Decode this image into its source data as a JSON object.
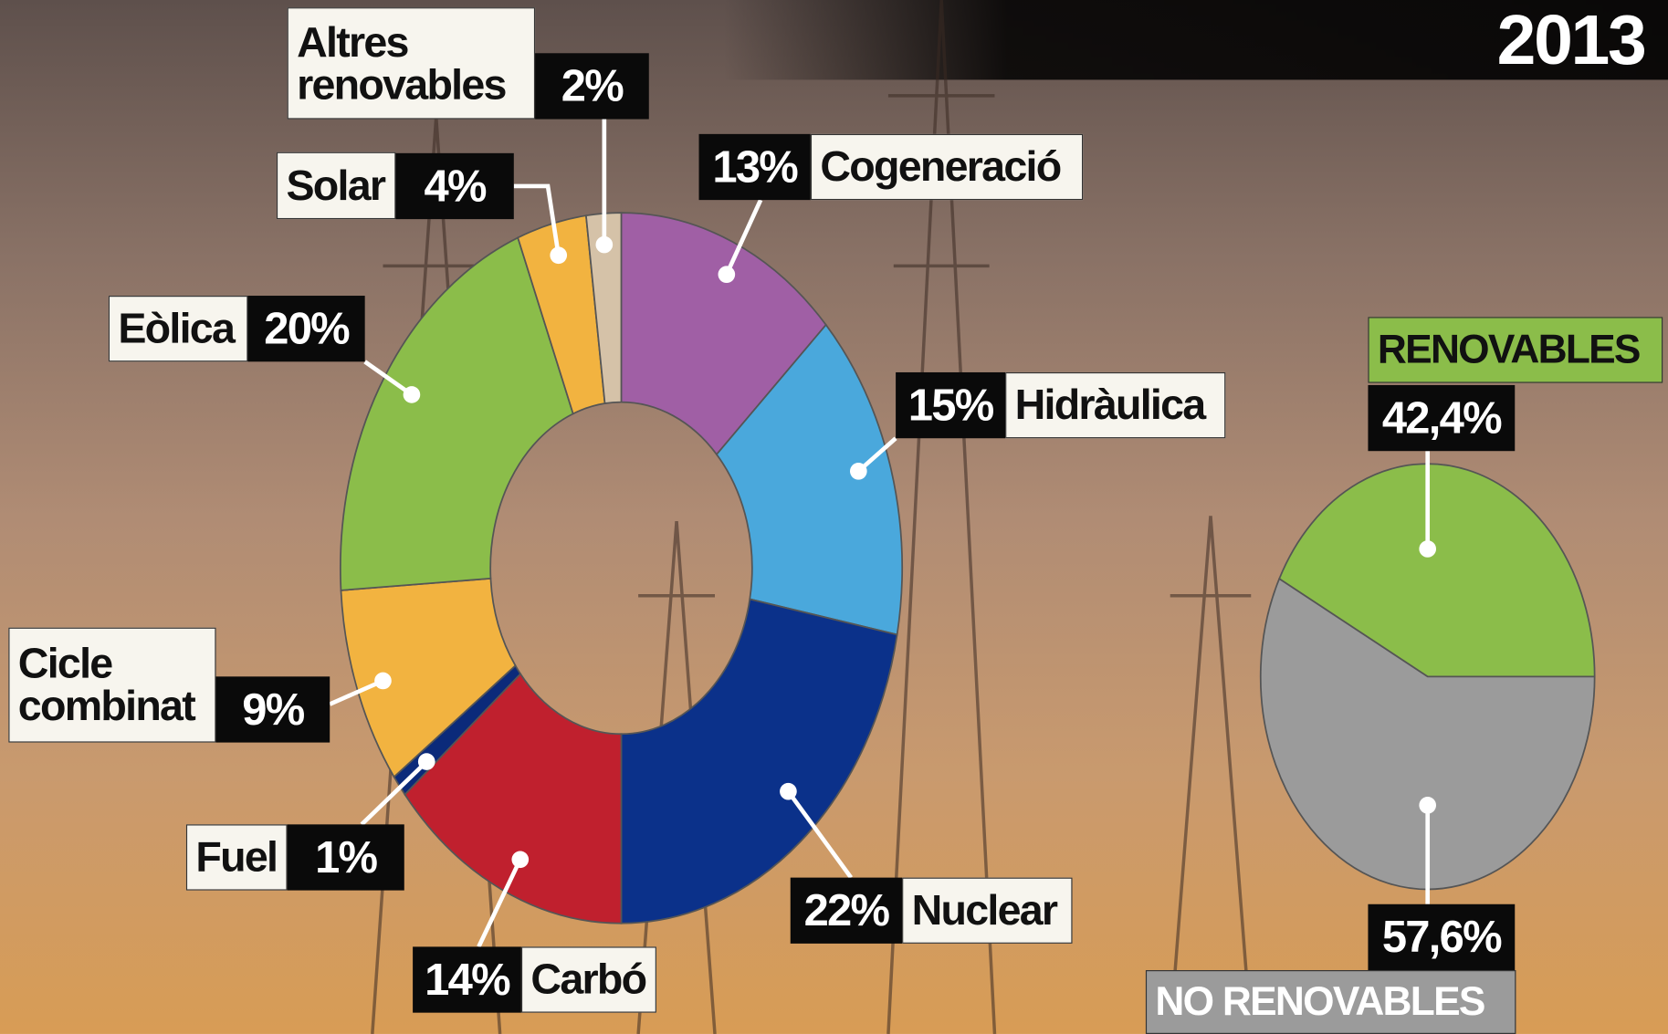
{
  "chart_data": [
    {
      "type": "donut",
      "title": "2013",
      "categories": [
        "Cogeneració",
        "Hidràulica",
        "Nuclear",
        "Carbó",
        "Fuel",
        "Cicle combinat",
        "Eòlica",
        "Solar",
        "Altres renovables"
      ],
      "values": [
        13,
        15,
        22,
        14,
        1,
        9,
        20,
        4,
        2
      ],
      "value_labels": [
        "13%",
        "15%",
        "22%",
        "14%",
        "1%",
        "9%",
        "20%",
        "4%",
        "2%"
      ],
      "colors": [
        "#a05fa5",
        "#4aa8dc",
        "#0b318a",
        "#c0202e",
        "#0b2a7a",
        "#f2b340",
        "#8bbd4a",
        "#f2b340",
        "#d5c2a8"
      ]
    },
    {
      "type": "pie",
      "categories": [
        "RENOVABLES",
        "NO RENOVABLES"
      ],
      "values": [
        42.4,
        57.6
      ],
      "value_labels": [
        "42,4%",
        "57,6%"
      ],
      "colors": [
        "#8bbd4a",
        "#9b9b9b"
      ]
    }
  ]
}
